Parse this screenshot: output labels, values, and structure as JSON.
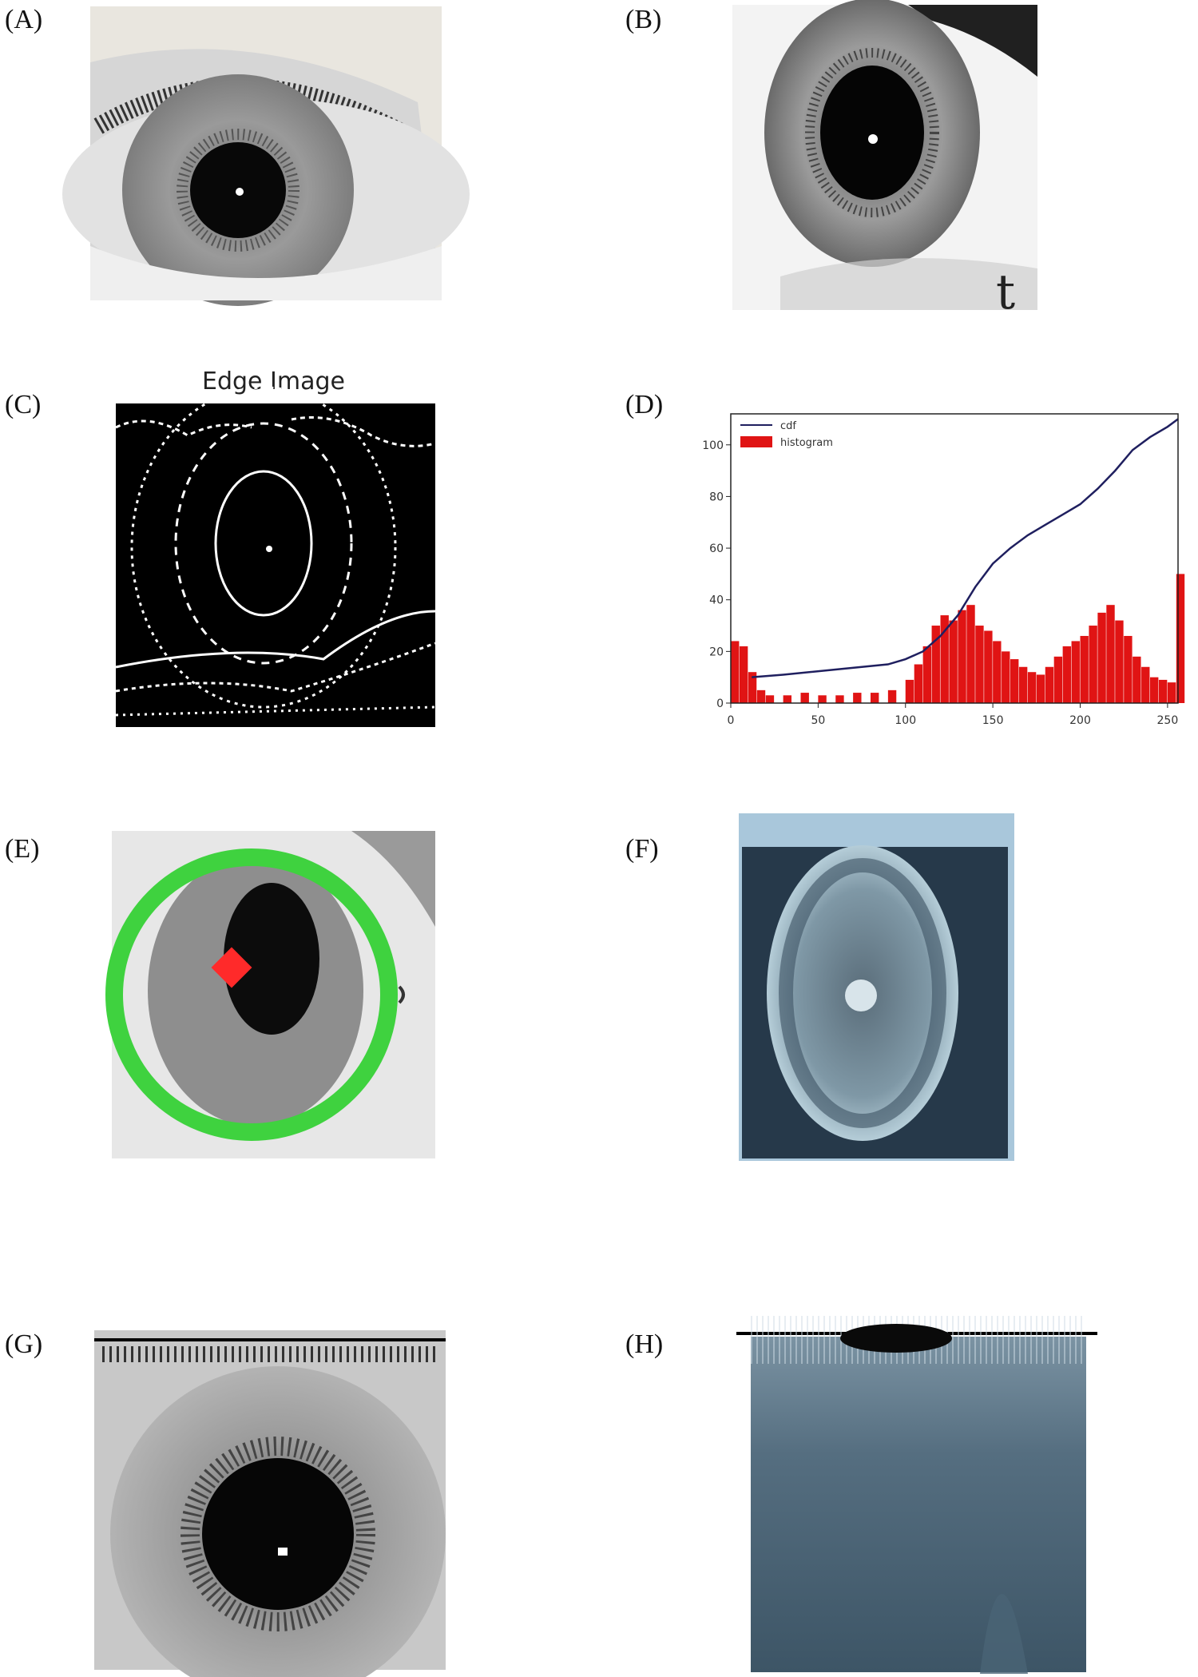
{
  "panel_labels": {
    "a": "(A)",
    "b": "(B)",
    "c": "(C)",
    "d": "(D)",
    "e": "(E)",
    "f": "(F)",
    "g": "(G)",
    "h": "(H)"
  },
  "edge_image_title": "Edge Image",
  "chart_data": {
    "type": "bar",
    "title": "",
    "xlabel": "",
    "ylabel": "",
    "xlim": [
      0,
      256
    ],
    "ylim": [
      0,
      112
    ],
    "xticks": [
      0,
      50,
      100,
      150,
      200,
      250
    ],
    "yticks": [
      0,
      20,
      40,
      60,
      80,
      100
    ],
    "legend_position": "top-left",
    "grid": false,
    "series": [
      {
        "name": "cdf",
        "kind": "line",
        "color": "#1f1f5f",
        "x": [
          12,
          30,
          60,
          90,
          100,
          110,
          120,
          130,
          140,
          150,
          160,
          170,
          180,
          190,
          200,
          210,
          220,
          230,
          240,
          250,
          256
        ],
        "y": [
          10,
          11,
          13,
          15,
          17,
          20,
          26,
          34,
          45,
          54,
          60,
          65,
          69,
          73,
          77,
          83,
          90,
          98,
          103,
          107,
          110
        ]
      },
      {
        "name": "histogram",
        "kind": "bar",
        "color": "#e01414",
        "x": [
          0,
          5,
          10,
          15,
          20,
          30,
          40,
          50,
          60,
          70,
          80,
          90,
          100,
          105,
          110,
          115,
          120,
          125,
          130,
          135,
          140,
          145,
          150,
          155,
          160,
          165,
          170,
          175,
          180,
          185,
          190,
          195,
          200,
          205,
          210,
          215,
          220,
          225,
          230,
          235,
          240,
          245,
          250,
          255
        ],
        "y": [
          24,
          22,
          12,
          5,
          3,
          3,
          4,
          3,
          3,
          4,
          4,
          5,
          9,
          15,
          22,
          30,
          34,
          32,
          36,
          38,
          30,
          28,
          24,
          20,
          17,
          14,
          12,
          11,
          14,
          18,
          22,
          24,
          26,
          30,
          35,
          38,
          32,
          26,
          18,
          14,
          10,
          9,
          8,
          50
        ]
      }
    ]
  }
}
